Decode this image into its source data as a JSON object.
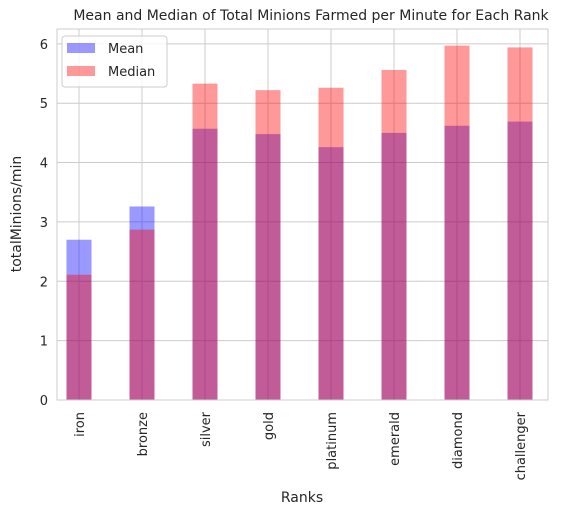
{
  "chart_data": {
    "type": "bar",
    "title": "Mean and Median of Total Minions Farmed per Minute for Each Rank",
    "xlabel": "Ranks",
    "ylabel": "totalMinions/min",
    "categories": [
      "iron",
      "bronze",
      "silver",
      "gold",
      "platinum",
      "emerald",
      "diamond",
      "challenger"
    ],
    "series": [
      {
        "name": "Mean",
        "values": [
          2.7,
          3.26,
          4.57,
          4.48,
          4.26,
          4.5,
          4.62,
          4.69
        ],
        "color": "#0000ff",
        "opacity": 0.4
      },
      {
        "name": "Median",
        "values": [
          2.11,
          2.87,
          5.33,
          5.22,
          5.26,
          5.56,
          5.97,
          5.94
        ],
        "color": "#ff0000",
        "opacity": 0.4
      }
    ],
    "ylim": [
      0,
      6.25
    ],
    "yticks": [
      0,
      1,
      2,
      3,
      4,
      5,
      6
    ],
    "grid": true,
    "legend_position": "top-left"
  }
}
